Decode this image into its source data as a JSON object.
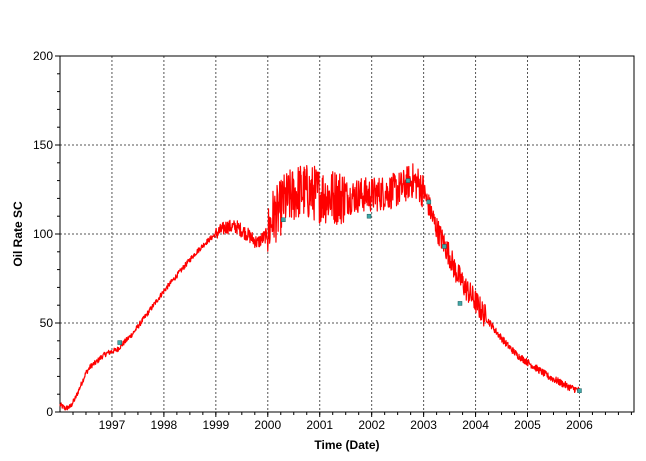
{
  "chart_data": {
    "type": "line",
    "title": "",
    "xlabel": "Time (Date)",
    "ylabel": "Oil Rate SC",
    "xlim": [
      1996.0,
      2007.05
    ],
    "ylim": [
      0,
      200
    ],
    "grid": true,
    "legend": "none",
    "x_tick_labels": [
      "1997",
      "1998",
      "1999",
      "2000",
      "2001",
      "2002",
      "2003",
      "2004",
      "2005",
      "2006"
    ],
    "x_ticks": [
      1997,
      1998,
      1999,
      2000,
      2001,
      2002,
      2003,
      2004,
      2005,
      2006
    ],
    "y_tick_labels": [
      "0",
      "50",
      "100",
      "150",
      "200"
    ],
    "y_ticks": [
      0,
      50,
      100,
      150,
      200
    ],
    "series": [
      {
        "color": "#ff0000",
        "x": [
          1996.0,
          1996.05,
          1996.1,
          1996.2,
          1996.3,
          1996.4,
          1996.5,
          1996.6,
          1996.7,
          1996.8,
          1996.9,
          1997.0,
          1997.1,
          1997.2,
          1997.4,
          1997.6,
          1997.8,
          1998.0,
          1998.2,
          1998.4,
          1998.6,
          1998.8,
          1999.0,
          1999.2,
          1999.4,
          1999.6,
          1999.8,
          2000.0,
          2000.1,
          2000.2,
          2000.3,
          2000.4,
          2000.5,
          2000.6,
          2000.7,
          2000.8,
          2000.9,
          2001.0,
          2001.2,
          2001.4,
          2001.6,
          2001.8,
          2002.0,
          2002.2,
          2002.4,
          2002.6,
          2002.7,
          2002.8,
          2002.9,
          2003.0,
          2003.1,
          2003.2,
          2003.3,
          2003.4,
          2003.5,
          2003.6,
          2003.8,
          2004.0,
          2004.2,
          2004.4,
          2004.6,
          2004.8,
          2005.0,
          2005.2,
          2005.4,
          2005.6,
          2005.8,
          2006.0
        ],
        "y": [
          4,
          3,
          2,
          3,
          8,
          15,
          22,
          26,
          28,
          31,
          33,
          34,
          35,
          38,
          44,
          52,
          60,
          68,
          75,
          82,
          89,
          95,
          100,
          104,
          104,
          100,
          95,
          100,
          110,
          112,
          118,
          120,
          122,
          124,
          124,
          123,
          123,
          122,
          121,
          121,
          121,
          122,
          122,
          123,
          124,
          126,
          129,
          130,
          128,
          124,
          116,
          107,
          100,
          94,
          88,
          80,
          70,
          62,
          53,
          45,
          38,
          32,
          28,
          24,
          20,
          17,
          14,
          12
        ]
      }
    ],
    "markers": [
      {
        "x": 1997.15,
        "y": 39
      },
      {
        "x": 2000.3,
        "y": 108
      },
      {
        "x": 2001.95,
        "y": 110
      },
      {
        "x": 2002.7,
        "y": 130
      },
      {
        "x": 2003.1,
        "y": 118
      },
      {
        "x": 2003.4,
        "y": 93
      },
      {
        "x": 2003.7,
        "y": 61
      },
      {
        "x": 2006.0,
        "y": 12
      }
    ],
    "colors": {
      "series": "#ff0000",
      "grid": "#555555",
      "marker": "#3fa7a7"
    }
  }
}
